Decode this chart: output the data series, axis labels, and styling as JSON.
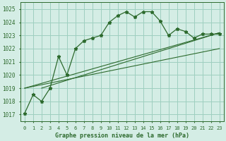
{
  "title": "Graphe pression niveau de la mer (hPa)",
  "bg_color": "#d4ede5",
  "grid_color": "#9ecfbf",
  "line_color": "#2d6a2d",
  "x_labels": [
    "0",
    "1",
    "2",
    "3",
    "4",
    "5",
    "6",
    "7",
    "8",
    "9",
    "10",
    "11",
    "12",
    "13",
    "14",
    "15",
    "16",
    "17",
    "18",
    "19",
    "20",
    "21",
    "22",
    "23"
  ],
  "main_data": [
    1017.1,
    1018.5,
    1018.0,
    1019.0,
    1021.4,
    1020.0,
    1022.0,
    1022.6,
    1022.8,
    1023.0,
    1024.0,
    1024.5,
    1024.8,
    1024.4,
    1024.8,
    1024.8,
    1024.1,
    1023.0,
    1023.5,
    1023.3,
    1022.8,
    1023.1,
    1023.1,
    1023.1
  ],
  "trend_lines": [
    {
      "x0": 0,
      "y0": 1019.0,
      "x1": 23,
      "y1": 1022.0
    },
    {
      "x0": 0,
      "y0": 1019.0,
      "x1": 23,
      "y1": 1023.2
    },
    {
      "x0": 2,
      "y0": 1019.0,
      "x1": 23,
      "y1": 1023.2
    }
  ],
  "ylim": [
    1016.5,
    1025.5
  ],
  "xlim": [
    -0.5,
    23.5
  ],
  "yticks": [
    1017,
    1018,
    1019,
    1020,
    1021,
    1022,
    1023,
    1024,
    1025
  ],
  "figsize": [
    3.2,
    2.0
  ],
  "dpi": 100
}
